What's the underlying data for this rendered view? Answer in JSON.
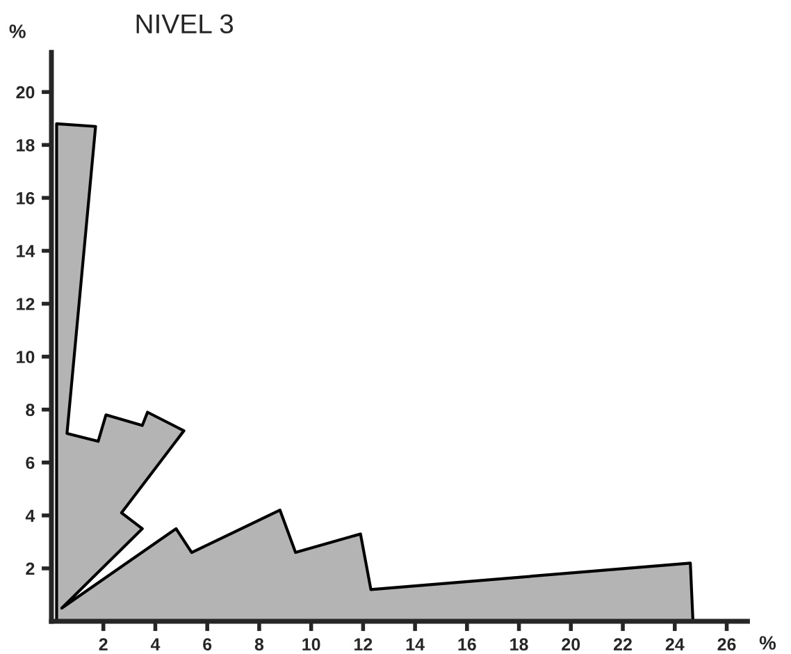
{
  "chart_data": {
    "type": "area",
    "title": "NIVEL 3",
    "xlabel": "%",
    "ylabel": "%",
    "series": [
      {
        "color": "#b4b4b4",
        "x": [
          0,
          24.7,
          24.6,
          12.3,
          11.9,
          9.4,
          8.8,
          5.4,
          4.8,
          0.4,
          3.5,
          2.7,
          5.1,
          3.7,
          3.5,
          2.1,
          1.8,
          0.6,
          1.7,
          0.2,
          0.2
        ],
        "values": [
          0,
          0,
          2.2,
          1.2,
          3.3,
          2.6,
          4.2,
          2.6,
          3.5,
          0.5,
          3.5,
          4.1,
          7.2,
          7.9,
          7.4,
          7.8,
          6.8,
          7.1,
          18.7,
          18.8,
          0
        ]
      }
    ],
    "xlim": [
      0,
      26.8
    ],
    "ylim": [
      0,
      21.5
    ],
    "xticks": [
      2,
      4,
      6,
      8,
      10,
      12,
      14,
      16,
      18,
      20,
      22,
      24,
      26
    ],
    "yticks": [
      2,
      4,
      6,
      8,
      10,
      12,
      14,
      16,
      18,
      20
    ],
    "grid": false,
    "legend": false
  }
}
